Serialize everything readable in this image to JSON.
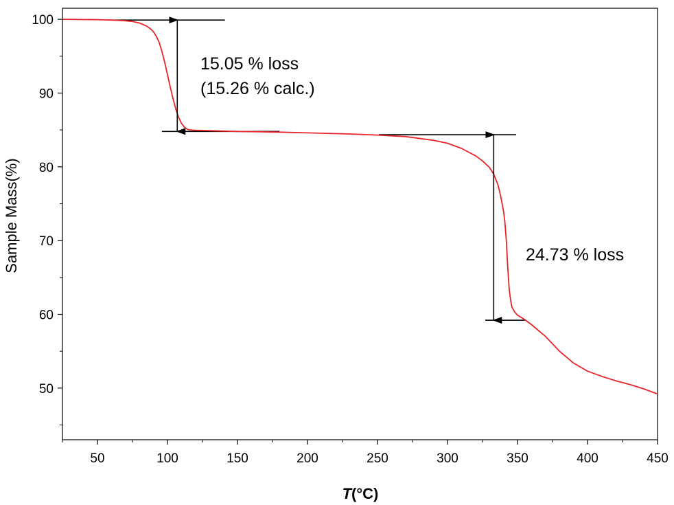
{
  "chart_data": {
    "type": "line",
    "title": "",
    "xlabel_italic": "T",
    "xlabel_rest": "(°C)",
    "ylabel": "Sample Mass(%)",
    "xlim": [
      25,
      450
    ],
    "ylim": [
      43,
      101.5
    ],
    "x_ticks": [
      50,
      100,
      150,
      200,
      250,
      300,
      350,
      400,
      450
    ],
    "y_ticks": [
      50,
      60,
      70,
      80,
      90,
      100
    ],
    "grid": false,
    "legend": "none",
    "series": [
      {
        "color": "#e8242a",
        "x": [
          25,
          50,
          60,
          70,
          75,
          80,
          85,
          88,
          90,
          92,
          94,
          96,
          98,
          100,
          102,
          104,
          106,
          108,
          110,
          112,
          114,
          116,
          120,
          130,
          150,
          180,
          200,
          230,
          250,
          270,
          290,
          300,
          310,
          320,
          325,
          330,
          333,
          336,
          338,
          340,
          341,
          342,
          343,
          344,
          345,
          346,
          348,
          350,
          355,
          360,
          370,
          380,
          390,
          400,
          410,
          420,
          430,
          440,
          450
        ],
        "y": [
          100,
          99.95,
          99.9,
          99.8,
          99.7,
          99.5,
          99.1,
          98.7,
          98.3,
          97.7,
          96.9,
          95.7,
          94.2,
          92.5,
          90.8,
          89.2,
          87.8,
          86.7,
          85.9,
          85.4,
          85.1,
          85.0,
          84.95,
          84.9,
          84.8,
          84.7,
          84.6,
          84.45,
          84.3,
          84.1,
          83.6,
          83.2,
          82.5,
          81.5,
          80.8,
          79.9,
          79.0,
          77.6,
          76.0,
          74.0,
          72.5,
          70.0,
          66.5,
          63.5,
          62.0,
          61.0,
          60.3,
          59.9,
          59.3,
          58.6,
          57.0,
          55.0,
          53.4,
          52.3,
          51.6,
          51.0,
          50.5,
          49.9,
          49.2
        ]
      }
    ],
    "annotations": {
      "loss1_line1": "15.05 % loss",
      "loss1_line2": "(15.26 % calc.)",
      "loss2": "24.73 % loss"
    },
    "reference_lines": [
      {
        "x1": 57,
        "x2": 141,
        "y": 99.9
      },
      {
        "x1": 96,
        "x2": 180,
        "y": 84.8
      },
      {
        "x1": 251,
        "x2": 349,
        "y": 84.35
      },
      {
        "x1": 327,
        "x2": 356,
        "y": 59.2
      }
    ],
    "arrows": [
      {
        "x": 107,
        "y_from": 99.9,
        "y_to": 84.8
      },
      {
        "x": 333,
        "y_from": 84.35,
        "y_to": 59.2
      }
    ]
  }
}
